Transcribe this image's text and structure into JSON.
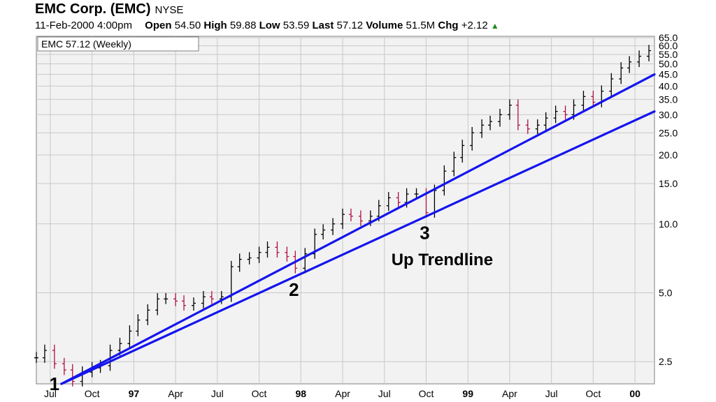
{
  "header": {
    "company": "EMC Corp. (EMC)",
    "exchange": "NYSE",
    "datetime": "11-Feb-2000 4:00pm",
    "open_label": "Open",
    "open": "54.50",
    "high_label": "High",
    "high": "59.88",
    "low_label": "Low",
    "low": "53.59",
    "last_label": "Last",
    "last": "57.12",
    "volume_label": "Volume",
    "volume": "51.5M",
    "chg_label": "Chg",
    "chg": "+2.12",
    "chg_icon": "up-triangle-icon"
  },
  "chart_data": {
    "type": "bar",
    "legend": "EMC 57.12 (Weekly)",
    "yscale": "log",
    "ylim": [
      2.0,
      66.0
    ],
    "y_ticks": [
      "2.5",
      "5.0",
      "10.0",
      "15.0",
      "20.0",
      "25.0",
      "30.0",
      "35.0",
      "40.0",
      "45.0",
      "50.0",
      "55.0",
      "60.0",
      "65.0"
    ],
    "y_tick_values": [
      2.5,
      5,
      10,
      15,
      20,
      25,
      30,
      35,
      40,
      45,
      50,
      55,
      60,
      65
    ],
    "x_ticks": [
      "Jul",
      "Oct",
      "97",
      "Apr",
      "Jul",
      "Oct",
      "98",
      "Apr",
      "Jul",
      "Oct",
      "99",
      "Apr",
      "Jul",
      "Oct",
      "00"
    ],
    "x_tick_months": [
      6,
      9,
      12,
      15,
      18,
      21,
      24,
      27,
      30,
      33,
      36,
      39,
      42,
      45,
      48
    ],
    "x_major": [
      "97",
      "98",
      "99",
      "00"
    ],
    "xlim_months": [
      5.0,
      49.4
    ],
    "series": [
      {
        "points": [
          [
            5.0,
            2.6
          ],
          [
            5.6,
            2.8
          ],
          [
            6.3,
            2.45
          ],
          [
            7.0,
            2.3
          ],
          [
            7.6,
            2.05
          ],
          [
            8.3,
            2.25
          ],
          [
            9.0,
            2.35
          ],
          [
            9.6,
            2.4
          ],
          [
            10.3,
            2.8
          ],
          [
            11.0,
            3.0
          ],
          [
            11.7,
            3.4
          ],
          [
            12.3,
            3.8
          ],
          [
            13.0,
            4.2
          ],
          [
            13.7,
            4.7
          ],
          [
            14.3,
            4.7
          ],
          [
            15.0,
            4.6
          ],
          [
            15.6,
            4.4
          ],
          [
            16.3,
            4.5
          ],
          [
            17.0,
            4.8
          ],
          [
            17.6,
            4.7
          ],
          [
            18.3,
            4.8
          ],
          [
            19.0,
            6.5
          ],
          [
            19.6,
            7.0
          ],
          [
            20.3,
            7.1
          ],
          [
            21.0,
            7.5
          ],
          [
            21.6,
            7.9
          ],
          [
            22.3,
            7.5
          ],
          [
            23.0,
            7.2
          ],
          [
            23.6,
            6.4
          ],
          [
            24.3,
            7.4
          ],
          [
            25.0,
            9.0
          ],
          [
            25.6,
            9.4
          ],
          [
            26.3,
            10.0
          ],
          [
            27.0,
            11.0
          ],
          [
            27.6,
            10.8
          ],
          [
            28.3,
            10.3
          ],
          [
            29.0,
            10.8
          ],
          [
            29.6,
            12.0
          ],
          [
            30.3,
            13.0
          ],
          [
            31.0,
            12.4
          ],
          [
            31.6,
            13.5
          ],
          [
            32.3,
            13.5
          ],
          [
            33.0,
            11.2
          ],
          [
            33.6,
            14.0
          ],
          [
            34.3,
            17.0
          ],
          [
            35.0,
            19.5
          ],
          [
            35.6,
            22.0
          ],
          [
            36.3,
            25.0
          ],
          [
            37.0,
            27.0
          ],
          [
            37.6,
            28.0
          ],
          [
            38.3,
            30.0
          ],
          [
            39.0,
            33.0
          ],
          [
            39.6,
            27.0
          ],
          [
            40.3,
            26.0
          ],
          [
            41.0,
            27.0
          ],
          [
            41.6,
            29.0
          ],
          [
            42.3,
            31.0
          ],
          [
            43.0,
            30.0
          ],
          [
            43.6,
            33.0
          ],
          [
            44.3,
            36.0
          ],
          [
            45.0,
            34.0
          ],
          [
            45.6,
            38.0
          ],
          [
            46.3,
            43.0
          ],
          [
            47.0,
            48.0
          ],
          [
            47.6,
            51.0
          ],
          [
            48.3,
            54.0
          ],
          [
            49.0,
            57.12
          ]
        ]
      },
      {
        "points": [
          [
            6.8,
            2.0
          ],
          [
            49.4,
            45.0
          ]
        ]
      },
      {
        "points": [
          [
            6.8,
            2.0
          ],
          [
            49.4,
            31.0
          ]
        ]
      }
    ],
    "annotations": [
      {
        "text": "1",
        "x": 6.3,
        "y": 1.88
      },
      {
        "text": "2",
        "x": 23.5,
        "y": 4.85
      },
      {
        "text": "3",
        "x": 32.9,
        "y": 8.6
      },
      {
        "text": "Up Trendline",
        "x": 30.5,
        "y": 6.6
      }
    ],
    "colors": {
      "trend": "#1414ee",
      "up": "#000000",
      "down": "#b01040",
      "grid": "#c8c8c8",
      "bg": "#f2f2f2"
    }
  }
}
